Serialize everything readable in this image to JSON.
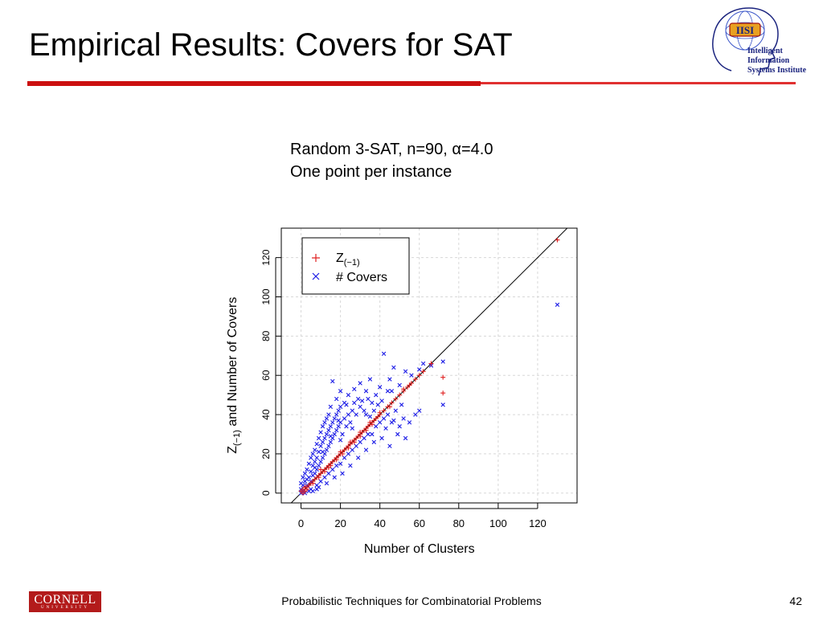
{
  "slide": {
    "title": "Empirical Results: Covers for SAT",
    "subtitle_line1": "Random 3-SAT, n=90, α=4.0",
    "subtitle_line2": "One point per instance",
    "footer": "Probabilistic Techniques for Combinatorial Problems",
    "page_number": "42",
    "logo_line1": "Intelligent Information",
    "logo_line2": "Systems Institute",
    "logo_mark": "IISI",
    "cornell_name": "CORNELL",
    "cornell_sub": "UNIVERSITY"
  },
  "colors": {
    "accent": "#cc1010",
    "z_series": "#e02020",
    "covers_series": "#1a1ae6",
    "diagonal": "#000000"
  },
  "chart_data": {
    "type": "scatter",
    "xlabel": "Number of Clusters",
    "ylabel_main": "Z",
    "ylabel_sub": "(−1)",
    "ylabel_rest": " and Number of Covers",
    "xlim": [
      -10,
      140
    ],
    "ylim": [
      -5,
      135
    ],
    "x_ticks": [
      0,
      20,
      40,
      60,
      80,
      100,
      120
    ],
    "y_ticks": [
      0,
      20,
      40,
      60,
      80,
      100,
      120
    ],
    "grid": true,
    "diagonal_line": true,
    "legend_placement": "top-left",
    "legend": [
      {
        "marker": "+",
        "label_main": "Z",
        "label_sub": "(−1)"
      },
      {
        "marker": "x",
        "label": "# Covers"
      }
    ],
    "series": [
      {
        "marker": "+",
        "points": [
          [
            0,
            1
          ],
          [
            1,
            0
          ],
          [
            1,
            2
          ],
          [
            2,
            1
          ],
          [
            2,
            3
          ],
          [
            3,
            3
          ],
          [
            4,
            4
          ],
          [
            5,
            5
          ],
          [
            6,
            6
          ],
          [
            7,
            7
          ],
          [
            8,
            8
          ],
          [
            9,
            9
          ],
          [
            10,
            10
          ],
          [
            11,
            11
          ],
          [
            12,
            12
          ],
          [
            13,
            13
          ],
          [
            14,
            14
          ],
          [
            15,
            15
          ],
          [
            16,
            16
          ],
          [
            17,
            17
          ],
          [
            18,
            18
          ],
          [
            19,
            19
          ],
          [
            20,
            20
          ],
          [
            21,
            21
          ],
          [
            22,
            22
          ],
          [
            23,
            23
          ],
          [
            24,
            24
          ],
          [
            25,
            25
          ],
          [
            26,
            26
          ],
          [
            27,
            27
          ],
          [
            28,
            28
          ],
          [
            29,
            29
          ],
          [
            30,
            30
          ],
          [
            31,
            31
          ],
          [
            32,
            32
          ],
          [
            33,
            33
          ],
          [
            34,
            34
          ],
          [
            35,
            35
          ],
          [
            36,
            36
          ],
          [
            37,
            37
          ],
          [
            38,
            38
          ],
          [
            39,
            39
          ],
          [
            40,
            40
          ],
          [
            42,
            42
          ],
          [
            44,
            44
          ],
          [
            46,
            46
          ],
          [
            48,
            48
          ],
          [
            50,
            50
          ],
          [
            52,
            52
          ],
          [
            54,
            54
          ],
          [
            56,
            56
          ],
          [
            58,
            58
          ],
          [
            60,
            60
          ],
          [
            62,
            62
          ],
          [
            66,
            66
          ],
          [
            72,
            59
          ],
          [
            72,
            51
          ],
          [
            130,
            129
          ],
          [
            3,
            2
          ],
          [
            6,
            5
          ],
          [
            9,
            8
          ],
          [
            12,
            11
          ],
          [
            15,
            14
          ],
          [
            18,
            17
          ],
          [
            21,
            20
          ],
          [
            24,
            23
          ],
          [
            27,
            26
          ],
          [
            30,
            29
          ],
          [
            33,
            32
          ],
          [
            36,
            35
          ],
          [
            10,
            12
          ],
          [
            14,
            13
          ],
          [
            20,
            21
          ],
          [
            25,
            26
          ],
          [
            30,
            31
          ],
          [
            35,
            36
          ],
          [
            40,
            41
          ],
          [
            45,
            44
          ],
          [
            52,
            53
          ],
          [
            55,
            55
          ]
        ]
      },
      {
        "marker": "x",
        "points": [
          [
            0,
            2
          ],
          [
            0,
            5
          ],
          [
            1,
            4
          ],
          [
            1,
            8
          ],
          [
            2,
            6
          ],
          [
            2,
            10
          ],
          [
            3,
            4
          ],
          [
            3,
            12
          ],
          [
            4,
            8
          ],
          [
            4,
            15
          ],
          [
            5,
            6
          ],
          [
            5,
            11
          ],
          [
            5,
            18
          ],
          [
            6,
            9
          ],
          [
            6,
            14
          ],
          [
            6,
            20
          ],
          [
            7,
            10
          ],
          [
            7,
            16
          ],
          [
            7,
            22
          ],
          [
            8,
            12
          ],
          [
            8,
            18
          ],
          [
            8,
            25
          ],
          [
            9,
            14
          ],
          [
            9,
            21
          ],
          [
            9,
            28
          ],
          [
            10,
            16
          ],
          [
            10,
            24
          ],
          [
            10,
            31
          ],
          [
            11,
            18
          ],
          [
            11,
            26
          ],
          [
            11,
            34
          ],
          [
            12,
            20
          ],
          [
            12,
            28
          ],
          [
            12,
            36
          ],
          [
            13,
            22
          ],
          [
            13,
            30
          ],
          [
            13,
            38
          ],
          [
            14,
            24
          ],
          [
            14,
            32
          ],
          [
            14,
            40
          ],
          [
            15,
            26
          ],
          [
            15,
            34
          ],
          [
            15,
            44
          ],
          [
            16,
            28
          ],
          [
            16,
            36
          ],
          [
            16,
            57
          ],
          [
            17,
            30
          ],
          [
            17,
            38
          ],
          [
            18,
            32
          ],
          [
            18,
            40
          ],
          [
            18,
            48
          ],
          [
            19,
            34
          ],
          [
            19,
            42
          ],
          [
            20,
            36
          ],
          [
            20,
            44
          ],
          [
            20,
            52
          ],
          [
            21,
            30
          ],
          [
            22,
            38
          ],
          [
            22,
            46
          ],
          [
            23,
            34
          ],
          [
            24,
            40
          ],
          [
            24,
            50
          ],
          [
            25,
            36
          ],
          [
            26,
            42
          ],
          [
            27,
            46
          ],
          [
            28,
            40
          ],
          [
            29,
            48
          ],
          [
            30,
            44
          ],
          [
            30,
            56
          ],
          [
            32,
            42
          ],
          [
            33,
            52
          ],
          [
            34,
            48
          ],
          [
            35,
            58
          ],
          [
            36,
            46
          ],
          [
            38,
            50
          ],
          [
            40,
            54
          ],
          [
            42,
            71
          ],
          [
            44,
            52
          ],
          [
            45,
            58
          ],
          [
            47,
            64
          ],
          [
            50,
            55
          ],
          [
            53,
            62
          ],
          [
            56,
            60
          ],
          [
            60,
            63
          ],
          [
            62,
            66
          ],
          [
            66,
            65
          ],
          [
            72,
            67
          ],
          [
            72,
            45
          ],
          [
            130,
            96
          ],
          [
            5,
            2
          ],
          [
            8,
            4
          ],
          [
            10,
            6
          ],
          [
            12,
            8
          ],
          [
            14,
            10
          ],
          [
            16,
            12
          ],
          [
            18,
            14
          ],
          [
            20,
            15
          ],
          [
            22,
            18
          ],
          [
            24,
            20
          ],
          [
            26,
            22
          ],
          [
            28,
            24
          ],
          [
            30,
            26
          ],
          [
            32,
            28
          ],
          [
            34,
            30
          ],
          [
            36,
            30
          ],
          [
            38,
            34
          ],
          [
            40,
            36
          ],
          [
            42,
            38
          ],
          [
            44,
            40
          ],
          [
            46,
            36
          ],
          [
            48,
            42
          ],
          [
            50,
            34
          ],
          [
            52,
            38
          ],
          [
            55,
            36
          ],
          [
            58,
            40
          ],
          [
            60,
            42
          ],
          [
            6,
            1
          ],
          [
            9,
            3
          ],
          [
            13,
            5
          ],
          [
            17,
            8
          ],
          [
            21,
            10
          ],
          [
            25,
            14
          ],
          [
            29,
            18
          ],
          [
            33,
            22
          ],
          [
            37,
            26
          ],
          [
            41,
            28
          ],
          [
            45,
            24
          ],
          [
            49,
            30
          ],
          [
            53,
            28
          ],
          [
            3,
            7
          ],
          [
            7,
            13
          ],
          [
            11,
            21
          ],
          [
            15,
            29
          ],
          [
            19,
            37
          ],
          [
            23,
            45
          ],
          [
            27,
            53
          ],
          [
            31,
            47
          ],
          [
            35,
            39
          ],
          [
            39,
            45
          ],
          [
            43,
            33
          ],
          [
            47,
            37
          ],
          [
            51,
            45
          ],
          [
            4,
            1
          ],
          [
            8,
            2
          ],
          [
            2,
            0
          ],
          [
            0,
            0
          ],
          [
            1,
            1
          ],
          [
            20,
            27
          ],
          [
            26,
            33
          ],
          [
            33,
            40
          ],
          [
            37,
            42
          ],
          [
            41,
            47
          ],
          [
            46,
            52
          ]
        ]
      }
    ]
  }
}
